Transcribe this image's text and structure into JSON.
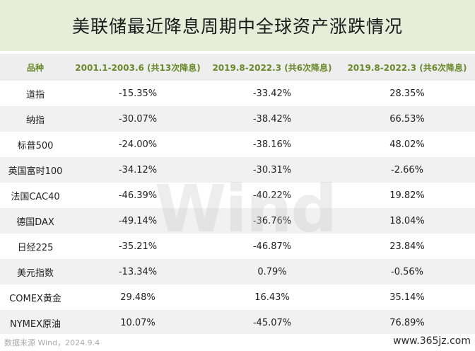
{
  "title": "美联储最近降息周期中全球资产涨跌情况",
  "table": {
    "headers": [
      "品种",
      "2001.1-2003.6 (共13次降息)",
      "2019.8-2022.3 (共6次降息)",
      "2019.8-2022.3 (共6次降息)"
    ],
    "rows": [
      [
        "道指",
        "-15.35%",
        "-33.42%",
        "28.35%"
      ],
      [
        "纳指",
        "-30.07%",
        "-38.42%",
        "66.53%"
      ],
      [
        "标普500",
        "-24.00%",
        "-38.16%",
        "48.02%"
      ],
      [
        "英国富时100",
        "-34.12%",
        "-30.31%",
        "-2.66%"
      ],
      [
        "法国CAC40",
        "-46.39%",
        "-40.22%",
        "19.82%"
      ],
      [
        "德国DAX",
        "-49.14%",
        "-36.76%",
        "18.04%"
      ],
      [
        "日经225",
        "-35.21%",
        "-46.87%",
        "23.84%"
      ],
      [
        "美元指数",
        "-13.34%",
        "0.79%",
        "-0.56%"
      ],
      [
        "COMEX黄金",
        "29.48%",
        "16.43%",
        "35.14%"
      ],
      [
        "NYMEX原油",
        "10.07%",
        "-45.07%",
        "76.89%"
      ]
    ]
  },
  "watermark": "Wind",
  "footer": {
    "source": "数据来源 Wind，2024.9.4",
    "site": "www.365jz.com"
  }
}
